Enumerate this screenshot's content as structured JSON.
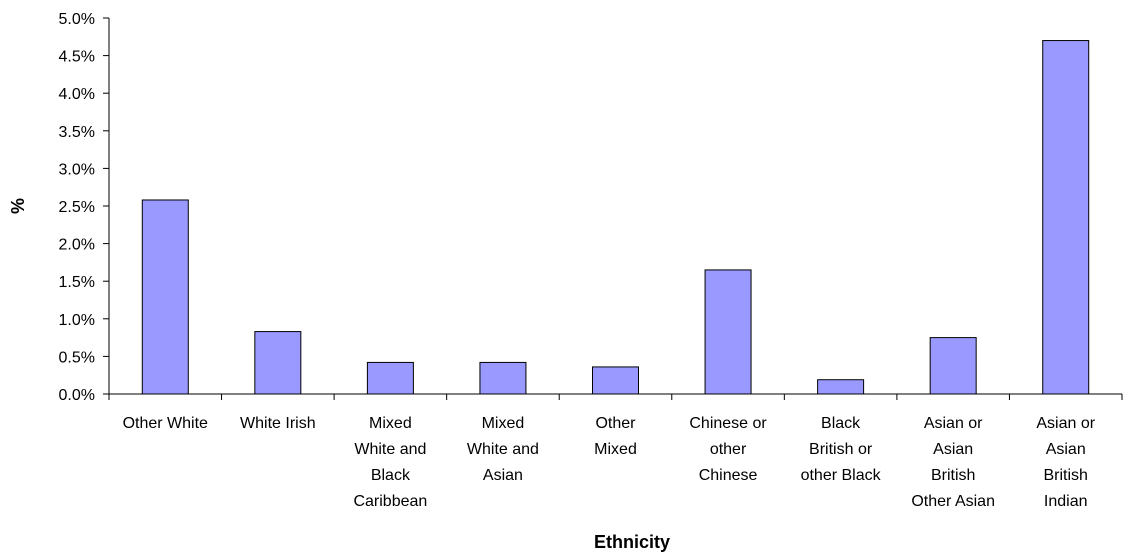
{
  "chart_data": {
    "type": "bar",
    "categories": [
      [
        "Other White"
      ],
      [
        "White Irish"
      ],
      [
        "Mixed",
        "White and",
        "Black",
        "Caribbean"
      ],
      [
        "Mixed",
        "White and",
        "Asian"
      ],
      [
        "Other",
        "Mixed"
      ],
      [
        "Chinese or",
        "other",
        "Chinese"
      ],
      [
        "Black",
        "British or",
        "other Black"
      ],
      [
        "Asian or",
        "Asian",
        "British",
        "Other Asian"
      ],
      [
        "Asian or",
        "Asian",
        "British",
        "Indian"
      ]
    ],
    "values": [
      2.58,
      0.83,
      0.42,
      0.42,
      0.36,
      1.65,
      0.19,
      0.75,
      4.7
    ],
    "xlabel": "Ethnicity",
    "ylabel": "%",
    "ylim": [
      0,
      5
    ],
    "yticks": [
      "0.0%",
      "0.5%",
      "1.0%",
      "1.5%",
      "2.0%",
      "2.5%",
      "3.0%",
      "3.5%",
      "4.0%",
      "4.5%",
      "5.0%"
    ],
    "grid": false,
    "legend": "none",
    "colors": {
      "bar_fill": "#9999ff",
      "bar_stroke": "#000000",
      "axis": "#000000"
    }
  }
}
